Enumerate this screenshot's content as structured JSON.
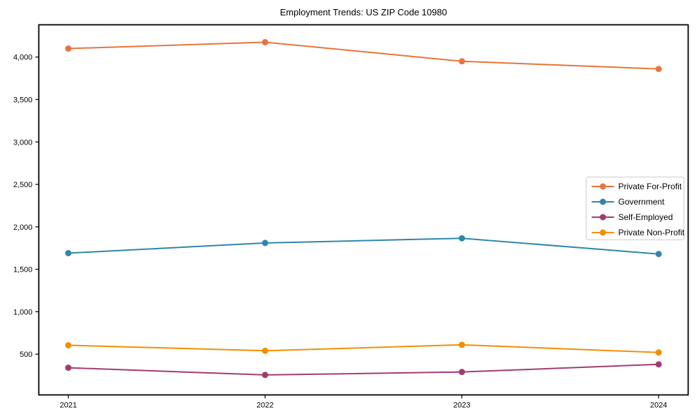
{
  "page": {
    "background": "#ffffff",
    "axis_color": "#000000",
    "legend_border_color": "#cccccc",
    "legend_background": "#ffffff"
  },
  "chart_data": {
    "type": "line",
    "title": "Employment Trends: US ZIP Code 10980",
    "xlabel": "",
    "ylabel": "",
    "categories": [
      "2021",
      "2022",
      "2023",
      "2024"
    ],
    "x": [
      2021,
      2022,
      2023,
      2024
    ],
    "series": [
      {
        "name": "Private For-Profit",
        "color": "#E8743B",
        "values": [
          4100,
          4175,
          3950,
          3860
        ]
      },
      {
        "name": "Government",
        "color": "#2E86AB",
        "values": [
          1690,
          1810,
          1865,
          1680
        ]
      },
      {
        "name": "Self-Employed",
        "color": "#A23B72",
        "values": [
          340,
          255,
          290,
          380
        ]
      },
      {
        "name": "Private Non-Profit",
        "color": "#F18F01",
        "values": [
          605,
          540,
          610,
          520
        ]
      }
    ],
    "yticks": [
      500,
      1000,
      1500,
      2000,
      2500,
      3000,
      3500,
      4000
    ],
    "ytick_labels": [
      "500",
      "1,000",
      "1,500",
      "2,000",
      "2,500",
      "3,000",
      "3,500",
      "4,000"
    ],
    "ylim": [
      20,
      4380
    ],
    "xlim": [
      2020.85,
      2024.15
    ],
    "grid": false,
    "marker": "circle",
    "legend_position": "center-right"
  }
}
